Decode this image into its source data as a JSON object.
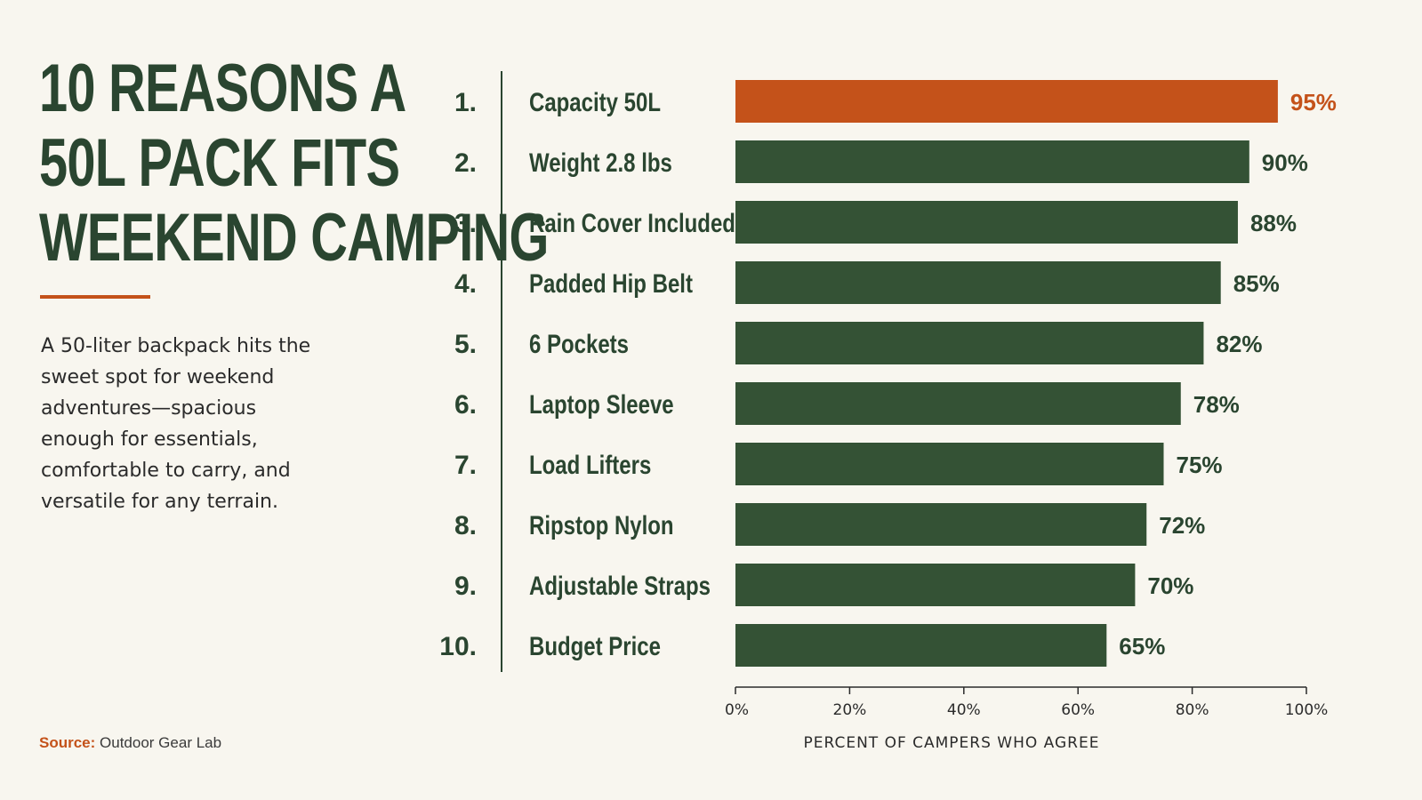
{
  "title_lines": [
    "10 REASONS A",
    "50L PACK FITS",
    "WEEKEND CAMPING"
  ],
  "description": "A 50-liter backpack hits the sweet spot for weekend adventures—spacious enough for essentials, comfortable to carry, and versatile for any terrain.",
  "source": {
    "label": "Source:",
    "text": "Outdoor Gear Lab"
  },
  "colors": {
    "bar": "#345235",
    "highlight": "#c4521a",
    "text": "#2a4530",
    "background": "#f8f6ef"
  },
  "chart_data": {
    "type": "bar",
    "orientation": "horizontal",
    "ranks": [
      "1.",
      "2.",
      "3.",
      "4.",
      "5.",
      "6.",
      "7.",
      "8.",
      "9.",
      "10."
    ],
    "categories": [
      "Capacity 50L",
      "Weight 2.8 lbs",
      "Rain Cover Included",
      "Padded Hip Belt",
      "6 Pockets",
      "Laptop Sleeve",
      "Load Lifters",
      "Ripstop Nylon",
      "Adjustable Straps",
      "Budget Price"
    ],
    "values": [
      95,
      90,
      88,
      85,
      82,
      78,
      75,
      72,
      70,
      65
    ],
    "value_labels": [
      "95%",
      "90%",
      "88%",
      "85%",
      "82%",
      "78%",
      "75%",
      "72%",
      "70%",
      "65%"
    ],
    "highlight_index": 0,
    "xlabel": "PERCENT OF CAMPERS WHO AGREE",
    "xlim": [
      0,
      100
    ],
    "xticks": [
      0,
      20,
      40,
      60,
      80,
      100
    ],
    "xtick_labels": [
      "0%",
      "20%",
      "40%",
      "60%",
      "80%",
      "100%"
    ],
    "grid": false
  }
}
